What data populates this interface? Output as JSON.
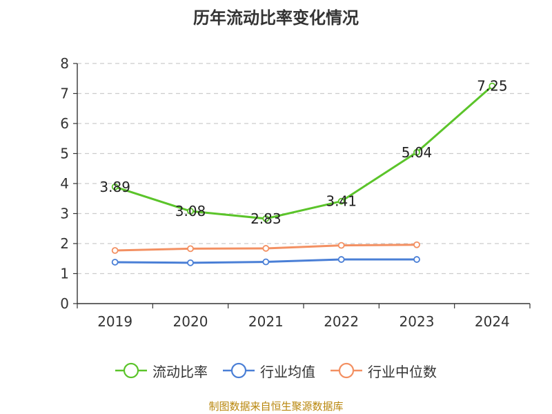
{
  "chart_data": {
    "type": "line",
    "title": "历年流动比率变化情况",
    "categories": [
      "2019",
      "2020",
      "2021",
      "2022",
      "2023",
      "2024"
    ],
    "ylim": [
      0,
      8
    ],
    "yticks": [
      0,
      1,
      2,
      3,
      4,
      5,
      6,
      7,
      8
    ],
    "grid": "horizontal dashed",
    "legend_position": "bottom",
    "series": [
      {
        "name": "流动比率",
        "color": "#5bc42a",
        "values": [
          3.89,
          3.08,
          2.83,
          3.41,
          5.04,
          7.25
        ],
        "labels": [
          "3.89",
          "3.08",
          "2.83",
          "3.41",
          "5.04",
          "7.25"
        ]
      },
      {
        "name": "行业均值",
        "color": "#4a7fd6",
        "values": [
          1.38,
          1.36,
          1.39,
          1.47,
          1.47,
          null
        ]
      },
      {
        "name": "行业中位数",
        "color": "#f39062",
        "values": [
          1.77,
          1.83,
          1.84,
          1.94,
          1.96,
          null
        ]
      }
    ]
  },
  "footer": {
    "source": "制图数据来自恒生聚源数据库"
  }
}
